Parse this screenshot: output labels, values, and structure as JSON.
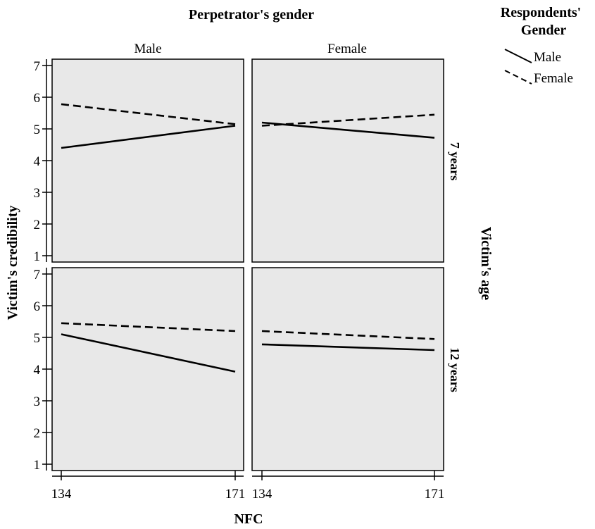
{
  "chart_data": {
    "type": "line",
    "title": "Perpetrator's gender",
    "xlabel": "NFC",
    "ylabel": "Victim's credibility",
    "row_title": "Victim's age",
    "columns": [
      "Male",
      "Female"
    ],
    "rows": [
      "7 years",
      "12 years"
    ],
    "x": [
      134,
      171
    ],
    "x_ticks": [
      "134",
      "171"
    ],
    "ylim": [
      0.8,
      7.2
    ],
    "y_ticks": [
      1,
      2,
      3,
      4,
      5,
      6,
      7
    ],
    "legend": {
      "title": "Respondents' Gender",
      "placement": "top-right",
      "entries": [
        {
          "name": "Male",
          "style": "solid"
        },
        {
          "name": "Female",
          "style": "dashed"
        }
      ]
    },
    "panels": [
      {
        "column": "Male",
        "row": "7 years",
        "series": [
          {
            "name": "Male",
            "values": [
              4.4,
              5.1
            ]
          },
          {
            "name": "Female",
            "values": [
              5.78,
              5.15
            ]
          }
        ]
      },
      {
        "column": "Female",
        "row": "7 years",
        "series": [
          {
            "name": "Male",
            "values": [
              5.2,
              4.72
            ]
          },
          {
            "name": "Female",
            "values": [
              5.1,
              5.45
            ]
          }
        ]
      },
      {
        "column": "Male",
        "row": "12 years",
        "series": [
          {
            "name": "Male",
            "values": [
              5.1,
              3.92
            ]
          },
          {
            "name": "Female",
            "values": [
              5.45,
              5.2
            ]
          }
        ]
      },
      {
        "column": "Female",
        "row": "12 years",
        "series": [
          {
            "name": "Male",
            "values": [
              4.78,
              4.6
            ]
          },
          {
            "name": "Female",
            "values": [
              5.2,
              4.95
            ]
          }
        ]
      }
    ],
    "panel_background": "#e8e8e8",
    "grid": false
  }
}
